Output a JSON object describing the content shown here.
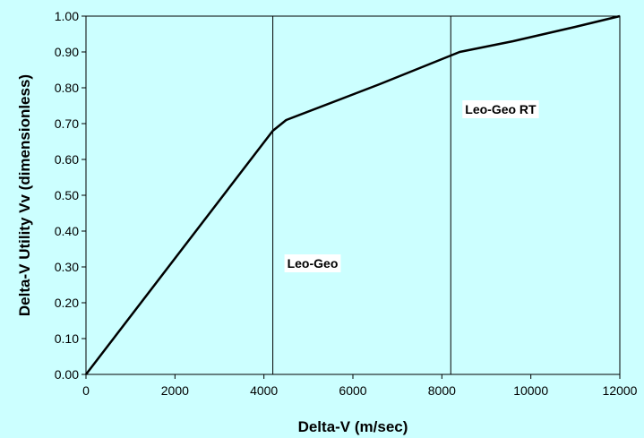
{
  "chart_data": {
    "type": "line",
    "title": "",
    "xlabel": "Delta-V (m/sec)",
    "ylabel": "Delta-V Utility Vv (dimensionless)",
    "xlim": [
      0,
      12000
    ],
    "ylim": [
      0,
      1
    ],
    "x_ticks": [
      "0",
      "2000",
      "4000",
      "6000",
      "8000",
      "10000",
      "12000"
    ],
    "y_ticks": [
      "0.00",
      "0.10",
      "0.20",
      "0.30",
      "0.40",
      "0.50",
      "0.60",
      "0.70",
      "0.80",
      "0.90",
      "1.00"
    ],
    "grid": false,
    "legend": "none",
    "series": [
      {
        "color": "#000000",
        "x": [
          0,
          4200,
          4500,
          6600,
          8200,
          8400,
          9600,
          11000,
          12000
        ],
        "y": [
          0,
          0.68,
          0.71,
          0.81,
          0.89,
          0.9,
          0.93,
          0.97,
          1.0
        ]
      }
    ],
    "reference_lines": [
      {
        "x": 4200,
        "label": "Leo-Geo",
        "label_y": 0.31
      },
      {
        "x": 8200,
        "label": "Leo-Geo RT",
        "label_y": 0.74
      }
    ],
    "colors": {
      "background": "#ccffff",
      "plot_area": "#ccffff",
      "line": "#000000",
      "label_box": "#ffffff"
    }
  }
}
